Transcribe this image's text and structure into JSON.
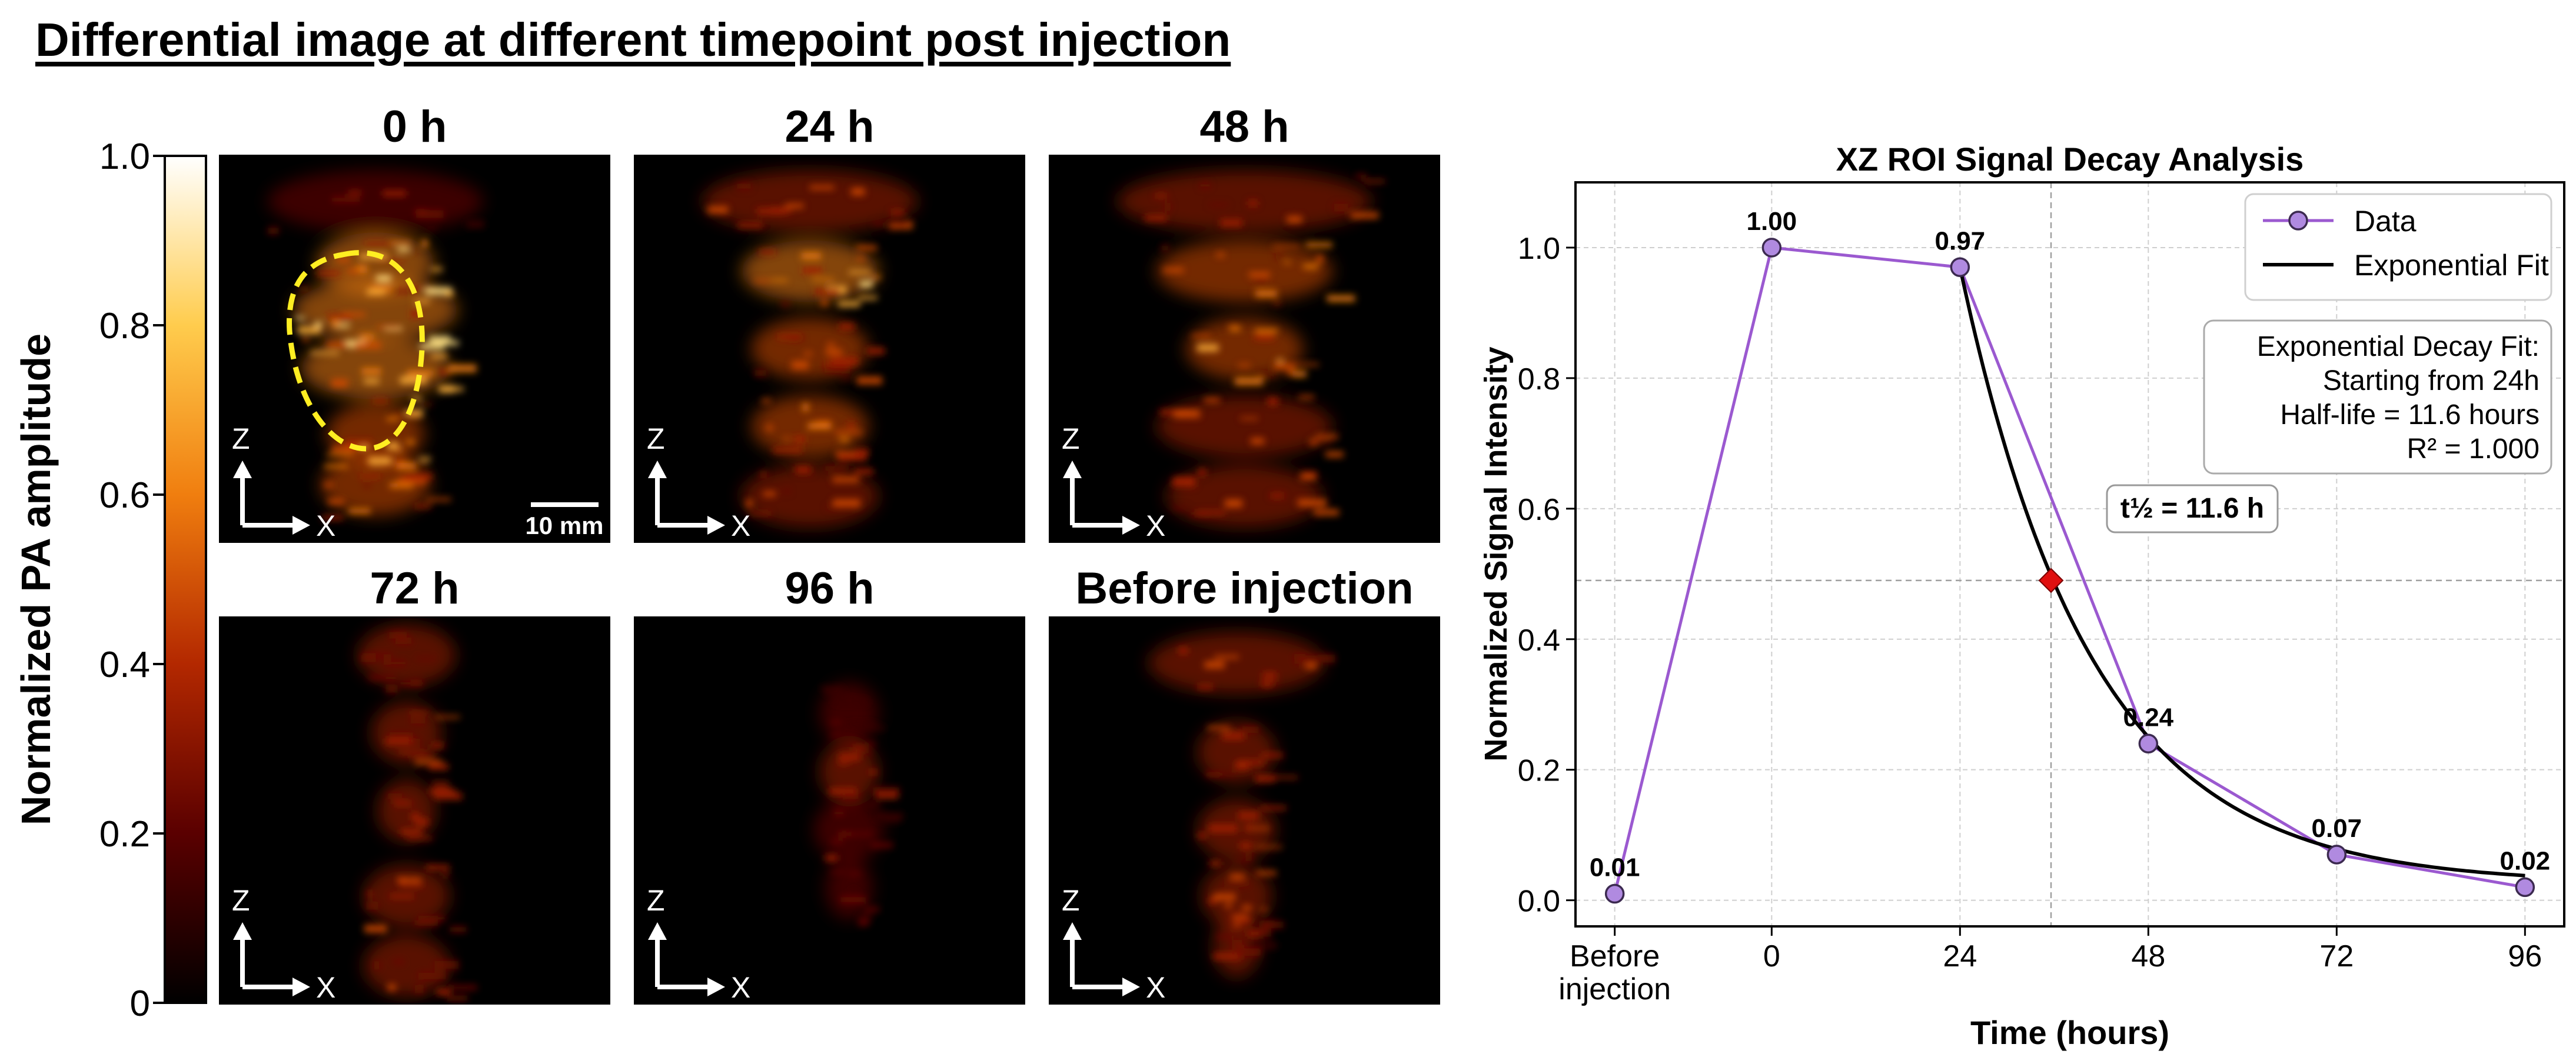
{
  "figure_title": "Differential image at different timepoint post injection",
  "colorbar": {
    "label": "Normalized PA amplitude",
    "ticks": [
      "0",
      "0.2",
      "0.4",
      "0.6",
      "0.8",
      "1.0"
    ],
    "colormap": "afmhot"
  },
  "panels": [
    {
      "label": "0 h",
      "tumor_outline": true,
      "scale_bar": "10 mm"
    },
    {
      "label": "24 h"
    },
    {
      "label": "48 h"
    },
    {
      "label": "72 h"
    },
    {
      "label": "96 h"
    },
    {
      "label": "Before injection"
    }
  ],
  "axis_arrows": {
    "z": "Z",
    "x": "X"
  },
  "colors": {
    "data_line": "#9b59d0",
    "data_marker_fill": "#b08ae0",
    "fit_line": "#000000",
    "halflife_marker": "#e01010",
    "tumor_outline": "#ffee22"
  },
  "chart_data": {
    "type": "line",
    "title": "XZ ROI Signal Decay Analysis",
    "xlabel": "Time (hours)",
    "ylabel": "Normalized Signal Intensity",
    "categories": [
      "Before\ninjection",
      "0",
      "24",
      "48",
      "72",
      "96"
    ],
    "x": [
      -20,
      0,
      24,
      48,
      72,
      96
    ],
    "xlim": [
      -25,
      101
    ],
    "ylim": [
      -0.04,
      1.1
    ],
    "yticks": [
      "0.0",
      "0.2",
      "0.4",
      "0.6",
      "0.8",
      "1.0"
    ],
    "grid": true,
    "legend_position": "top-right",
    "series": [
      {
        "name": "Data",
        "x": [
          -20,
          0,
          24,
          48,
          72,
          96
        ],
        "values": [
          0.01,
          1.0,
          0.97,
          0.24,
          0.07,
          0.02
        ],
        "labels": [
          "0.01",
          "1.00",
          "0.97",
          "0.24",
          "0.07",
          "0.02"
        ]
      },
      {
        "name": "Exponential Fit",
        "x_start": 24,
        "a": 0.945,
        "half_life": 11.6,
        "c": 0.025
      }
    ],
    "half_life_point": {
      "x": 35.6,
      "y": 0.49
    },
    "halflife_label": "t½ = 11.6 h",
    "fit_box": [
      "Exponential Decay Fit:",
      "Starting from 24h",
      "Half-life = 11.6 hours",
      "R² = 1.000"
    ]
  }
}
